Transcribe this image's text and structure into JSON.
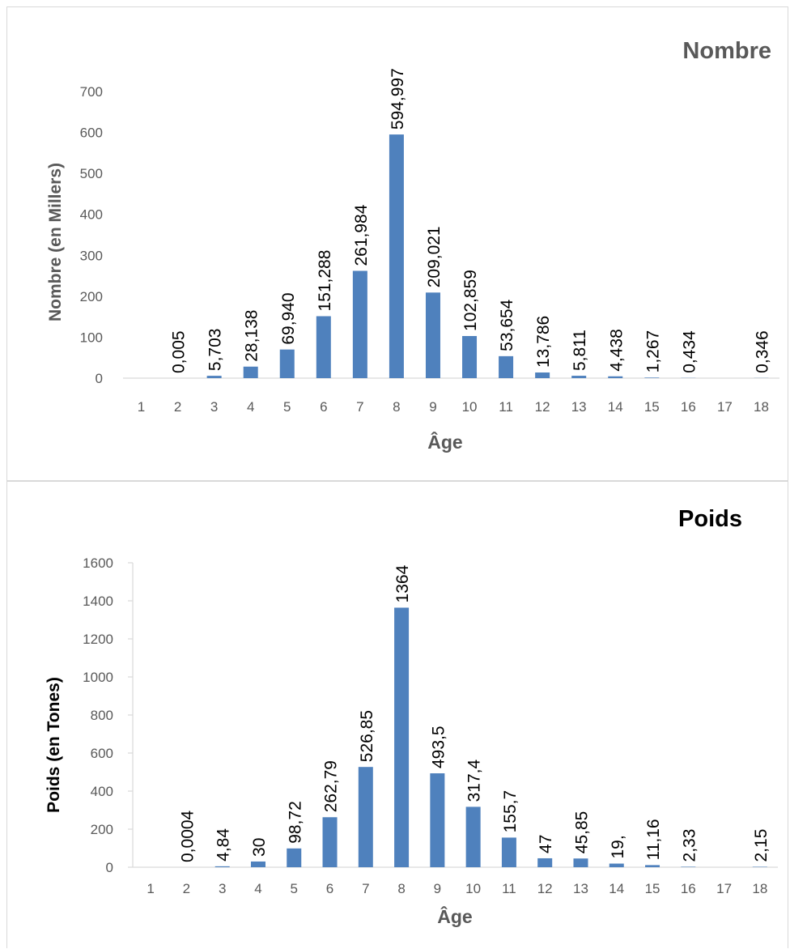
{
  "chart_data": [
    {
      "type": "bar",
      "title": "Nombre",
      "xlabel": "Âge",
      "ylabel": "Nombre (en Millers)",
      "ylim": [
        0,
        700
      ],
      "yticks": [
        "0",
        "100",
        "200",
        "300",
        "400",
        "500",
        "600",
        "700"
      ],
      "categories": [
        "1",
        "2",
        "3",
        "4",
        "5",
        "6",
        "7",
        "8",
        "9",
        "10",
        "11",
        "12",
        "13",
        "14",
        "15",
        "16",
        "17",
        "18"
      ],
      "values": [
        0,
        0.005,
        5.703,
        28.138,
        69.94,
        151.288,
        261.984,
        594.997,
        209.021,
        102.859,
        53.654,
        13.786,
        5.811,
        4.438,
        1.267,
        0.434,
        0,
        0.346
      ],
      "data_labels": [
        "",
        "0,005",
        "5,703",
        "28,138",
        "69,940",
        "151,288",
        "261,984",
        "594,997",
        "209,021",
        "102,859",
        "53,654",
        "13,786",
        "5,811",
        "4,438",
        "1,267",
        "0,434",
        "",
        "0,346"
      ],
      "grid": false,
      "legend": "none",
      "bar_color": "#4f81bd"
    },
    {
      "type": "bar",
      "title": "Poids",
      "xlabel": "Âge",
      "ylabel": "Poids (en Tones)",
      "ylim": [
        0,
        1600
      ],
      "yticks": [
        "0",
        "200",
        "400",
        "600",
        "800",
        "1000",
        "1200",
        "1400",
        "1600"
      ],
      "categories": [
        "1",
        "2",
        "3",
        "4",
        "5",
        "6",
        "7",
        "8",
        "9",
        "10",
        "11",
        "12",
        "13",
        "14",
        "15",
        "16",
        "17",
        "18"
      ],
      "values": [
        0,
        0.0004,
        4.84,
        30,
        98.72,
        262.79,
        526.85,
        1364,
        493.5,
        317.4,
        155.7,
        47,
        45.85,
        19,
        11.16,
        2.33,
        0,
        2.15
      ],
      "data_labels": [
        "",
        "0,0004",
        "4,84",
        "30",
        "98,72",
        "262,79",
        "526,85",
        "1364",
        "493,5",
        "317,4",
        "155,7",
        "47",
        "45,85",
        "19,",
        "11,16",
        "2,33",
        "",
        "2,15"
      ],
      "grid": false,
      "legend": "none",
      "bar_color": "#4f81bd"
    }
  ]
}
